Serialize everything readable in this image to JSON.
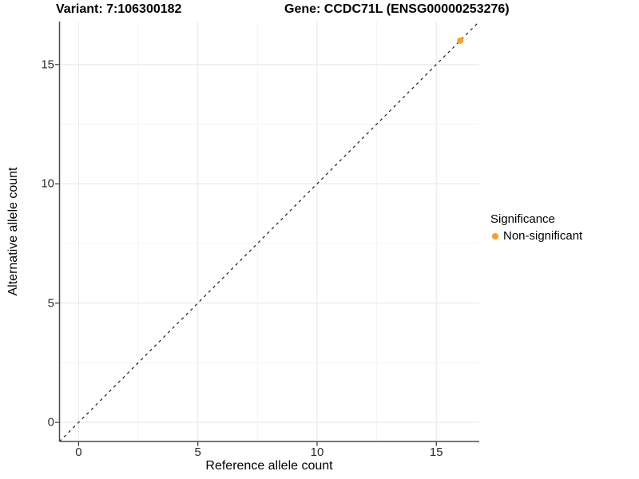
{
  "chart_data": {
    "type": "scatter",
    "titles": [
      "Variant: 7:106300182",
      "Gene: CCDC71L (ENSG00000253276)"
    ],
    "xlabel": "Reference allele count",
    "ylabel": "Alternative allele count",
    "xlim": [
      -0.8,
      16.8
    ],
    "ylim": [
      -0.8,
      16.8
    ],
    "xticks": [
      0,
      5,
      10,
      15
    ],
    "yticks": [
      0,
      5,
      10,
      15
    ],
    "xtick_labels": [
      "0",
      "5",
      "10",
      "15"
    ],
    "ytick_labels": [
      "0",
      "5",
      "10",
      "15"
    ],
    "minor_ticks": [
      2.5,
      7.5,
      12.5
    ],
    "grid": true,
    "reference_line": {
      "kind": "abline",
      "intercept": 0,
      "slope": 1,
      "style": "dashed",
      "color": "#1a1a1a"
    },
    "series": [
      {
        "name": "Non-significant",
        "color": "#F9A024",
        "points": [
          [
            16,
            16
          ]
        ]
      }
    ],
    "legend": {
      "title": "Significance",
      "position": "right",
      "entries": [
        {
          "label": "Non-significant",
          "color": "#F9A024"
        }
      ]
    },
    "panel_colors": {
      "background": "#ffffff",
      "grid_major": "#e8e8e8",
      "grid_minor": "#f3f3f3",
      "axis_line": "#4a4a4a",
      "tick_mark": "#333333"
    }
  }
}
